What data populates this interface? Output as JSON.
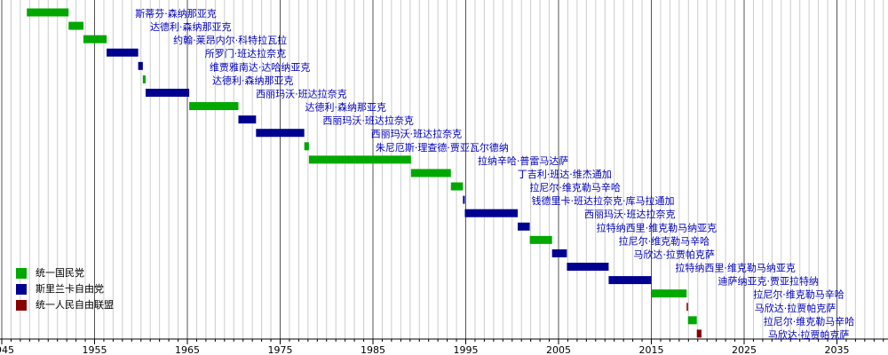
{
  "chart_data": {
    "type": "timeline",
    "parties": [
      {
        "name": "统一国民党",
        "color": "#00a800"
      },
      {
        "name": "斯里兰卡自由党",
        "color": "#000090"
      },
      {
        "name": "统一人民自由联盟",
        "color": "#880000"
      }
    ],
    "bars": [
      {
        "name": "斯蒂芬·森纳那亚克",
        "party": 0,
        "start": 1947.7,
        "end": 1952.2
      },
      {
        "name": "达德利·森纳那亚克",
        "party": 0,
        "start": 1952.2,
        "end": 1953.8
      },
      {
        "name": "约翰·莱昂内尔·科特拉瓦拉",
        "party": 0,
        "start": 1953.8,
        "end": 1956.3
      },
      {
        "name": "所罗门·班达拉奈克",
        "party": 1,
        "start": 1956.3,
        "end": 1959.7
      },
      {
        "name": "维贾雅南达·达哈纳亚克",
        "party": 1,
        "start": 1959.7,
        "end": 1960.2
      },
      {
        "name": "达德利·森纳那亚克",
        "party": 0,
        "start": 1960.2,
        "end": 1960.5
      },
      {
        "name": "西丽玛沃·班达拉奈克",
        "party": 1,
        "start": 1960.5,
        "end": 1965.2
      },
      {
        "name": "达德利·森纳那亚克",
        "party": 0,
        "start": 1965.2,
        "end": 1970.5
      },
      {
        "name": "西丽玛沃·班达拉奈克",
        "party": 1,
        "start": 1970.5,
        "end": 1972.4
      },
      {
        "name": "西丽玛沃·班达拉奈克",
        "party": 1,
        "start": 1972.4,
        "end": 1977.6
      },
      {
        "name": "朱尼厄斯·理查德·贾亚瓦尔德纳",
        "party": 0,
        "start": 1977.6,
        "end": 1978.1
      },
      {
        "name": "拉纳辛哈·普雷马达萨",
        "party": 0,
        "start": 1978.1,
        "end": 1989.1
      },
      {
        "name": "丁吉利·班达·维杰通加",
        "party": 0,
        "start": 1989.1,
        "end": 1993.4
      },
      {
        "name": "拉尼尔·维克勒马辛哈",
        "party": 0,
        "start": 1993.4,
        "end": 1994.7
      },
      {
        "name": "钱德里卡·班达拉奈克·库马拉通加",
        "party": 1,
        "start": 1994.7,
        "end": 1994.9
      },
      {
        "name": "西丽玛沃·班达拉奈克",
        "party": 1,
        "start": 1994.9,
        "end": 2000.6
      },
      {
        "name": "拉特纳西里·维克勒马纳亚克",
        "party": 1,
        "start": 2000.6,
        "end": 2001.9
      },
      {
        "name": "拉尼尔·维克勒马辛哈",
        "party": 0,
        "start": 2001.9,
        "end": 2004.3
      },
      {
        "name": "马欣达·拉贾帕克萨",
        "party": 1,
        "start": 2004.3,
        "end": 2005.9
      },
      {
        "name": "拉特纳西里·维克勒马纳亚克",
        "party": 1,
        "start": 2005.9,
        "end": 2010.4
      },
      {
        "name": "迪萨纳亚克·贾亚拉特纳",
        "party": 1,
        "start": 2010.4,
        "end": 2015.0
      },
      {
        "name": "拉尼尔·维克勒马辛哈",
        "party": 0,
        "start": 2015.0,
        "end": 2018.8
      },
      {
        "name": "马欣达·拉贾帕克萨",
        "party": 2,
        "start": 2018.8,
        "end": 2018.95
      },
      {
        "name": "拉尼尔·维克勒马辛哈",
        "party": 0,
        "start": 2018.95,
        "end": 2019.9
      },
      {
        "name": "马欣达·拉贾帕克萨",
        "party": 2,
        "start": 2019.9,
        "end": 2020.4
      }
    ],
    "xlim": [
      1945,
      2040
    ],
    "xticks": [
      1945,
      1955,
      1965,
      1975,
      1985,
      1995,
      2005,
      2015,
      2025,
      2035
    ],
    "minor_grid_step": 1,
    "grid": true
  }
}
